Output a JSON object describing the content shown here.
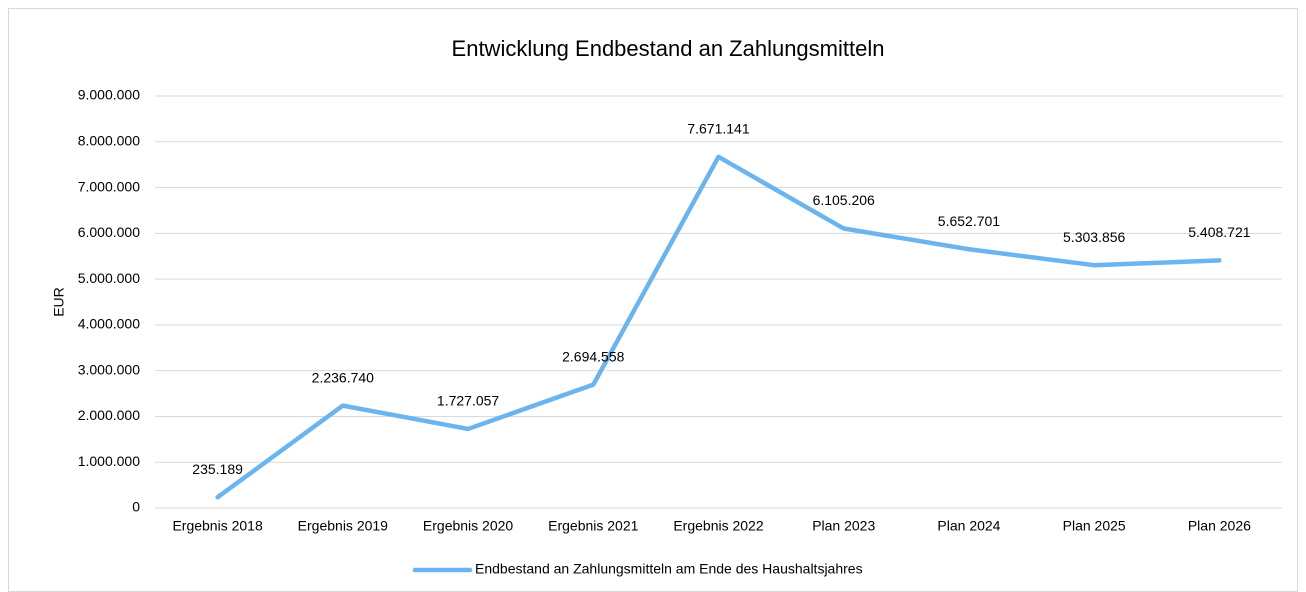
{
  "chart_data": {
    "type": "line",
    "title": "Entwicklung Endbestand an Zahlungsmitteln",
    "y_label": "EUR",
    "categories": [
      "Ergebnis 2018",
      "Ergebnis 2019",
      "Ergebnis 2020",
      "Ergebnis 2021",
      "Ergebnis 2022",
      "Plan 2023",
      "Plan 2024",
      "Plan 2025",
      "Plan 2026"
    ],
    "series": [
      {
        "name": "Endbestand an Zahlungsmitteln am Ende des Haushaltsjahres",
        "color": "#6cb4ee",
        "values": [
          235189,
          2236740,
          1727057,
          2694558,
          7671141,
          6105206,
          5652701,
          5303856,
          5408721
        ],
        "value_labels": [
          "235.189",
          "2.236.740",
          "1.727.057",
          "2.694.558",
          "7.671.141",
          "6.105.206",
          "5.652.701",
          "5.303.856",
          "5.408.721"
        ]
      }
    ],
    "ylim": [
      0,
      9000000
    ],
    "yticks": [
      0,
      {
        "value": 1000000,
        "label": "1.000.000"
      },
      {
        "value": 2000000,
        "label": "2.000.000"
      },
      {
        "value": 3000000,
        "label": "3.000.000"
      },
      {
        "value": 4000000,
        "label": "4.000.000"
      },
      {
        "value": 5000000,
        "label": "5.000.000"
      },
      {
        "value": 6000000,
        "label": "6.000.000"
      },
      {
        "value": 7000000,
        "label": "7.000.000"
      },
      {
        "value": 8000000,
        "label": "8.000.000"
      },
      {
        "value": 9000000,
        "label": "9.000.000"
      }
    ],
    "grid": true,
    "legend": "bottom"
  }
}
